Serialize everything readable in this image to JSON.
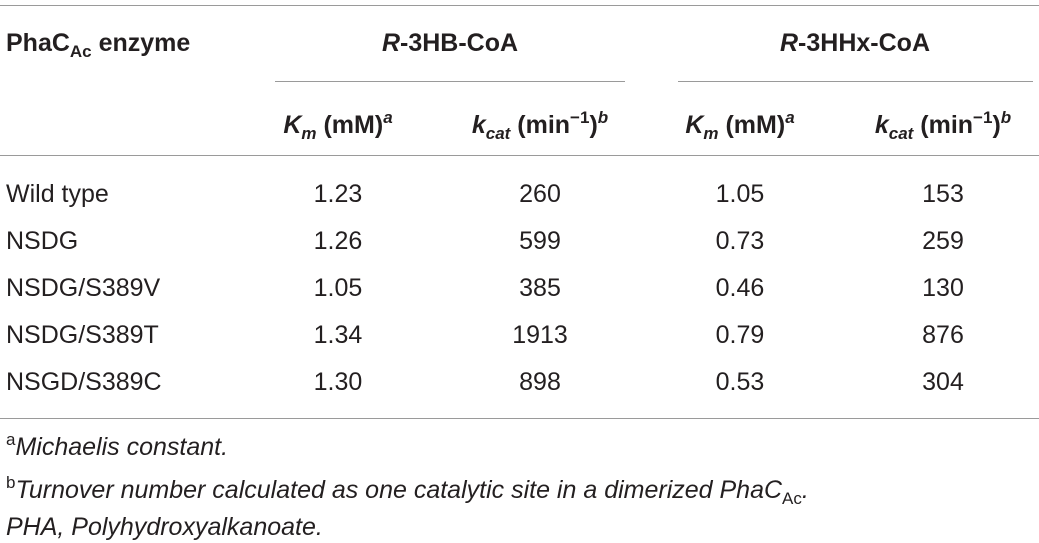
{
  "table": {
    "header": {
      "first": {
        "main": "PhaC",
        "sub": "Ac",
        "rest": " enzyme"
      },
      "groups": [
        {
          "italic": "R",
          "rest": "-3HB-CoA"
        },
        {
          "italic": "R",
          "rest": "-3HHx-CoA"
        }
      ]
    },
    "subheader": [
      {
        "symbol": "K",
        "sub": "m",
        "unit": " (mM)",
        "sup": "a"
      },
      {
        "symbol": "k",
        "sub": "cat",
        "unit": " (min",
        "exp": "−1",
        "close": ")",
        "sup": "b"
      },
      {
        "symbol": "K",
        "sub": "m",
        "unit": " (mM)",
        "sup": "a"
      },
      {
        "symbol": "k",
        "sub": "cat",
        "unit": " (min",
        "exp": "−1",
        "close": ")",
        "sup": "b"
      }
    ],
    "rows": [
      [
        "Wild type",
        "1.23",
        "260",
        "1.05",
        "153"
      ],
      [
        "NSDG",
        "1.26",
        "599",
        "0.73",
        "259"
      ],
      [
        "NSDG/S389V",
        "1.05",
        "385",
        "0.46",
        "130"
      ],
      [
        "NSDG/S389T",
        "1.34",
        "1913",
        "0.79",
        "876"
      ],
      [
        "NSGD/S389C",
        "1.30",
        "898",
        "0.53",
        "304"
      ]
    ]
  },
  "footnotes": [
    {
      "mark": "a",
      "text": "Michaelis constant."
    },
    {
      "mark": "b",
      "text": "Turnover number calculated as one catalytic site in a dimerized PhaC",
      "sub": "Ac",
      "end": "."
    }
  ],
  "abbreviation": "PHA, Polyhydroxyalkanoate."
}
